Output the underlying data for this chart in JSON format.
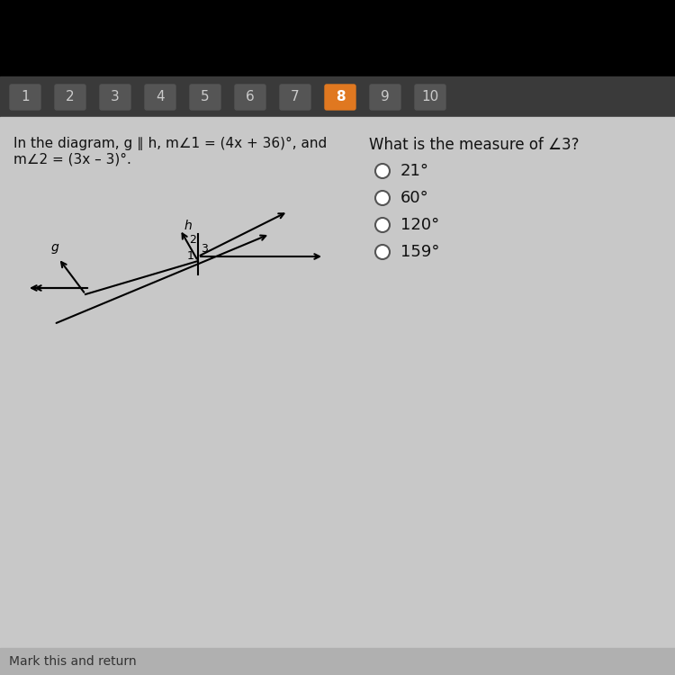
{
  "bg_top": "#000000",
  "bg_main": "#d0d0d0",
  "nav_bg": "#444444",
  "nav_active_bg": "#e07820",
  "nav_active_text": "#ffffff",
  "nav_inactive_text": "#cccccc",
  "nav_numbers": [
    "1",
    "2",
    "3",
    "4",
    "5",
    "6",
    "7",
    "8",
    "9",
    "10"
  ],
  "nav_active": 7,
  "problem_text_line1": "In the diagram, g ∥ h, m∠1 = (4x + 36)°, and",
  "problem_text_line2": "m∠2 = (3x – 3)°.",
  "question_text": "What is the measure of ∠3?",
  "choices": [
    "21°",
    "60°",
    "120°",
    "159°"
  ],
  "footer_text": "Mark this and return",
  "diagram_label_g": "g",
  "diagram_label_h": "h",
  "diagram_label_1": "1",
  "diagram_label_2": "2",
  "diagram_label_3": "3"
}
